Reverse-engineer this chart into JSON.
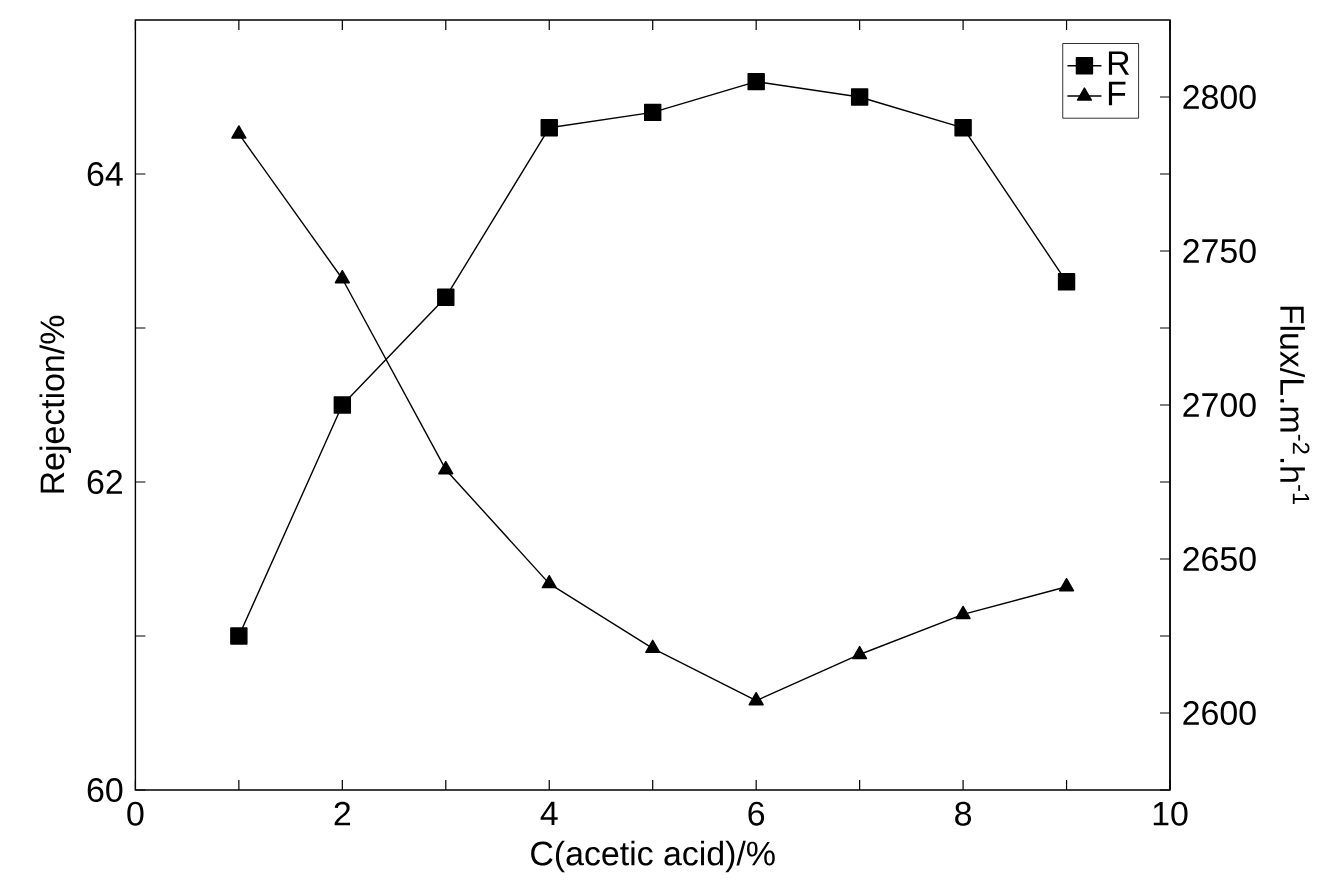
{
  "chart_data": {
    "type": "line",
    "xlabel": "C(acetic acid)/%",
    "ylabel": "Rejection/%",
    "y2label": "Flux/L.m$^{-2}$.h$^{-1}$",
    "x": [
      1,
      2,
      3,
      4,
      5,
      6,
      7,
      8,
      9
    ],
    "series": [
      {
        "name": "R",
        "color": "#000000",
        "marker": "square",
        "values": [
          61.0,
          62.5,
          63.2,
          64.3,
          64.4,
          64.6,
          64.5,
          64.3,
          63.3
        ]
      },
      {
        "name": "F",
        "color": "#000000",
        "marker": "triangle",
        "axis": "y2",
        "values": [
          2788,
          2741,
          2679,
          2642,
          2621,
          2604,
          2619,
          2632,
          2641
        ]
      }
    ],
    "line_style": "solid",
    "xlim": [
      0,
      10
    ],
    "xticks": [
      0,
      {
        "value": 1,
        "label": null
      },
      2,
      {
        "value": 3,
        "label": null
      },
      4,
      {
        "value": 5,
        "label": null
      },
      6,
      {
        "value": 7,
        "label": null
      },
      8,
      {
        "value": 9,
        "label": null
      },
      10
    ],
    "ylim": [
      60,
      65
    ],
    "yticks": [
      60,
      {
        "value": 61,
        "label": null
      },
      62,
      {
        "value": 63,
        "label": null
      },
      64
    ],
    "y2lim": [
      2575,
      2825
    ],
    "y2ticks": [
      {
        "value": 2575,
        "label": null
      },
      2600,
      {
        "value": 2625,
        "label": null
      },
      2650,
      {
        "value": 2675,
        "label": null
      },
      2700,
      {
        "value": 2725,
        "label": null
      },
      2750,
      {
        "value": 2775,
        "label": null
      },
      2800
    ],
    "legend": "top right"
  }
}
